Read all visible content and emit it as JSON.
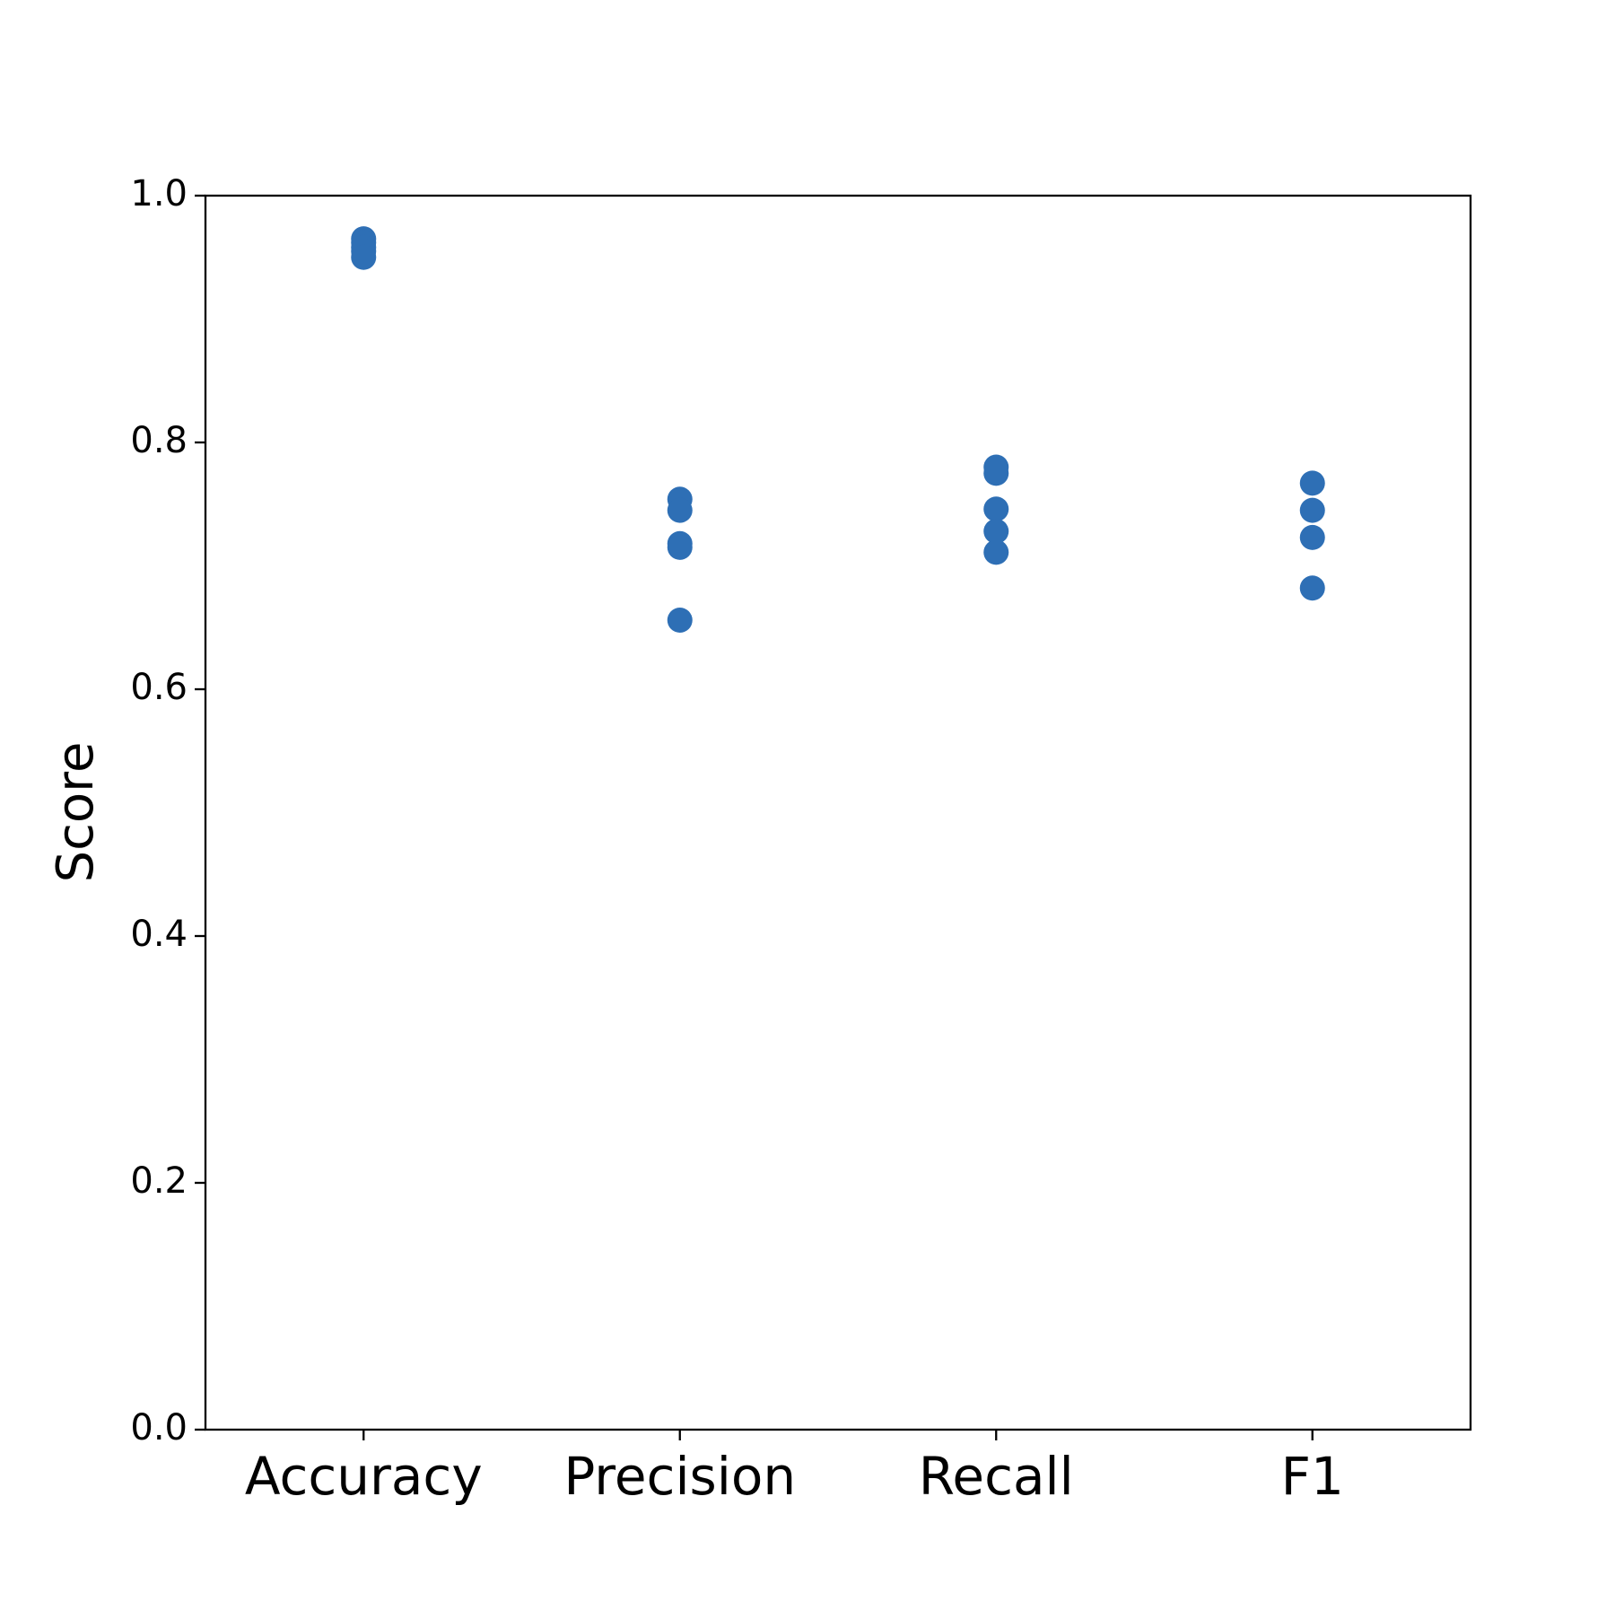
{
  "chart_data": {
    "type": "strip",
    "y_label": "Score",
    "categories": [
      "Accuracy",
      "Precision",
      "Recall",
      "F1"
    ],
    "values": [
      [
        0.965,
        0.962,
        0.958,
        0.955,
        0.95
      ],
      [
        0.754,
        0.745,
        0.718,
        0.715,
        0.656
      ],
      [
        0.78,
        0.775,
        0.746,
        0.728,
        0.711
      ],
      [
        0.767,
        0.745,
        0.723,
        0.682
      ]
    ],
    "color": "#2e6fb5",
    "ylim": [
      0,
      1
    ],
    "yticks": [
      {
        "value": 0,
        "label": "0.0"
      },
      {
        "value": 0.2,
        "label": "0.2"
      },
      {
        "value": 0.4,
        "label": "0.4"
      },
      {
        "value": 0.6,
        "label": "0.6"
      },
      {
        "value": 0.8,
        "label": "0.8"
      },
      {
        "value": 1,
        "label": "1.0"
      }
    ],
    "grid": false
  }
}
